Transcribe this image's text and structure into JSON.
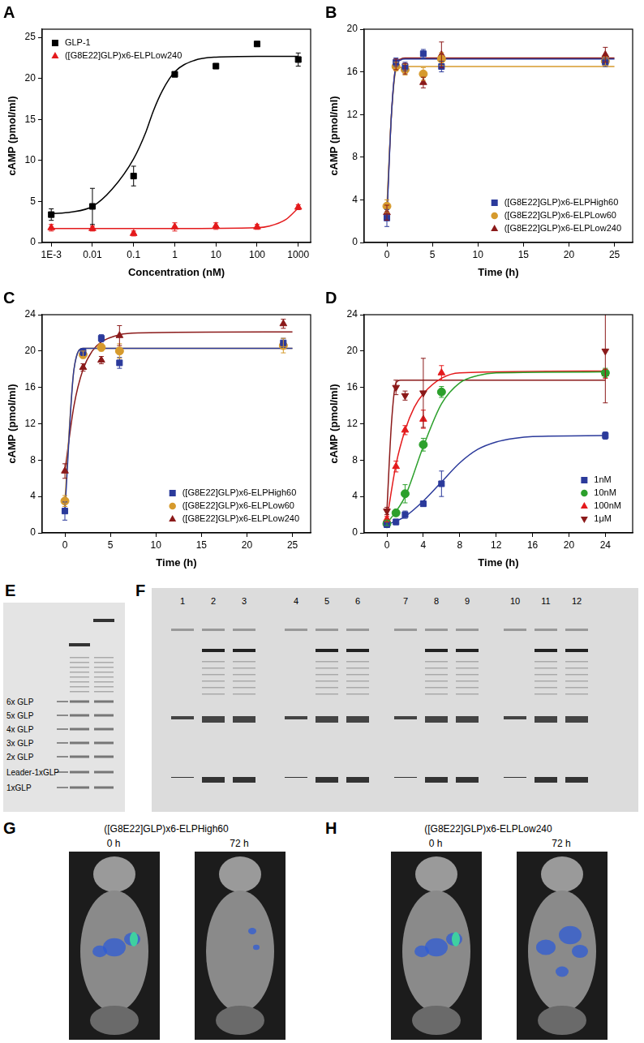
{
  "chart_data": [
    {
      "title": "A",
      "type": "scatter",
      "x_label": "Concentration (nM)",
      "y_label": "cAMP (pmol/ml)",
      "log": "x",
      "grid": false,
      "legend": "upper left",
      "xlim": [
        0.0006,
        2000
      ],
      "xticks": [
        {
          "value": 0.001,
          "label": "1E-3"
        },
        0.01,
        0.1,
        1,
        10,
        100,
        1000
      ],
      "ylim": [
        0,
        26
      ],
      "yticks": [
        0,
        5,
        10,
        15,
        20,
        25
      ],
      "series": [
        {
          "name": "GLP-1",
          "color": "#000000",
          "marker": "square",
          "x": [
            0.001,
            0.01,
            0.1,
            1,
            10,
            100,
            1000
          ],
          "values": [
            3.4,
            4.4,
            8.1,
            20.5,
            21.5,
            24.2,
            22.3
          ],
          "errors": [
            0.7,
            2.2,
            1.2,
            0.3,
            null,
            null,
            0.8
          ],
          "fit": {
            "x": [
              0.001,
              0.003,
              0.01,
              0.03,
              0.1,
              0.2,
              0.3,
              0.5,
              1,
              3,
              10,
              100,
              1000
            ],
            "values": [
              3.5,
              3.7,
              4.4,
              6.5,
              10.2,
              13.5,
              16,
              18.5,
              20.8,
              22.2,
              22.6,
              22.7,
              22.7
            ]
          }
        },
        {
          "name": "([G8E22]GLP)x6-ELPLow240",
          "color": "#e41a1c",
          "marker": "triangle",
          "x": [
            0.001,
            0.01,
            0.1,
            1,
            10,
            100,
            1000
          ],
          "values": [
            1.8,
            1.7,
            1.1,
            1.9,
            2.0,
            1.9,
            4.3
          ],
          "errors": [
            0.4,
            0.3,
            0.3,
            0.5,
            0.4,
            0.3,
            0.3
          ],
          "fit": {
            "x": [
              0.001,
              1,
              100,
              200,
              500,
              1000
            ],
            "values": [
              1.7,
              1.7,
              1.8,
              2.0,
              2.8,
              4.2
            ]
          }
        }
      ]
    },
    {
      "title": "B",
      "type": "scatter",
      "x_label": "Time (h)",
      "y_label": "cAMP (pmol/ml)",
      "grid": false,
      "legend": "lower right",
      "xlim": [
        -2.5,
        27
      ],
      "xticks": [
        0,
        5,
        10,
        15,
        20,
        25
      ],
      "ylim": [
        0,
        20
      ],
      "yticks": [
        0,
        4,
        8,
        12,
        16,
        20
      ],
      "series": [
        {
          "name": "([G8E22]GLP)x6-ELPHigh60",
          "color": "#2b3a9b",
          "marker": "square",
          "x": [
            0,
            1,
            2,
            4,
            6,
            24
          ],
          "values": [
            2.3,
            16.9,
            16.5,
            17.7,
            16.5,
            16.9
          ],
          "errors": [
            0.8,
            0.4,
            0.4,
            0.4,
            0.5,
            0.4
          ],
          "fit": {
            "x": [
              0,
              0.5,
              1,
              1.5,
              2,
              25
            ],
            "values": [
              2.3,
              12,
              16.5,
              17.1,
              17.2,
              17.2
            ]
          }
        },
        {
          "name": "([G8E22]GLP)x6-ELPLow60",
          "color": "#d69a2d",
          "marker": "circle",
          "x": [
            0,
            1,
            2,
            4,
            6,
            24
          ],
          "values": [
            3.4,
            16.5,
            16.2,
            15.8,
            17.2,
            17.0
          ],
          "errors": [
            0.6,
            0.4,
            0.5,
            0.6,
            0.6,
            0.4
          ],
          "fit": {
            "x": [
              0,
              0.5,
              1,
              1.5,
              2,
              25
            ],
            "values": [
              3.4,
              12,
              16.1,
              16.4,
              16.5,
              16.5
            ]
          }
        },
        {
          "name": "([G8E22]GLP)x6-ELPLow240",
          "color": "#8b1a1a",
          "marker": "triangle",
          "x": [
            0,
            1,
            2,
            4,
            6,
            24
          ],
          "values": [
            2.8,
            16.7,
            16.3,
            15.0,
            17.6,
            17.6
          ],
          "errors": [
            0.7,
            0.5,
            0.5,
            0.5,
            1.2,
            0.7
          ],
          "fit": {
            "x": [
              0,
              0.5,
              1,
              1.5,
              2,
              25
            ],
            "values": [
              2.8,
              12,
              16.6,
              17.2,
              17.3,
              17.3
            ]
          }
        }
      ]
    },
    {
      "title": "C",
      "type": "scatter",
      "x_label": "Time (h)",
      "y_label": "cAMP (pmol/ml)",
      "grid": false,
      "legend": "lower right",
      "xlim": [
        -2.5,
        27
      ],
      "xticks": [
        0,
        5,
        10,
        15,
        20,
        25
      ],
      "ylim": [
        0,
        24
      ],
      "yticks": [
        0,
        4,
        8,
        12,
        16,
        20,
        24
      ],
      "series": [
        {
          "name": "([G8E22]GLP)x6-ELPHigh60",
          "color": "#2b3a9b",
          "marker": "square",
          "x": [
            0,
            2,
            4,
            6,
            24
          ],
          "values": [
            2.4,
            19.9,
            21.4,
            18.7,
            20.9
          ],
          "errors": [
            1.0,
            0.4,
            0.4,
            0.6,
            0.5
          ],
          "fit": {
            "x": [
              0,
              1,
              2,
              25
            ],
            "values": [
              2.4,
              18,
              20.3,
              20.3
            ]
          }
        },
        {
          "name": "([G8E22]GLP)x6-ELPLow60",
          "color": "#d69a2d",
          "marker": "circle",
          "x": [
            0,
            2,
            4,
            6,
            24
          ],
          "values": [
            3.5,
            19.6,
            20.4,
            20.0,
            20.6
          ],
          "errors": [
            0.6,
            0.4,
            0.4,
            0.8,
            0.8
          ],
          "fit": {
            "x": [
              0,
              1,
              2,
              25
            ],
            "values": [
              3.5,
              18,
              20.3,
              20.3
            ]
          }
        },
        {
          "name": "([G8E22]GLP)x6-ELPLow240",
          "color": "#8b1a1a",
          "marker": "triangle",
          "x": [
            0,
            2,
            4,
            6,
            24
          ],
          "values": [
            6.8,
            18.2,
            19.0,
            21.7,
            23.0
          ],
          "errors": [
            0.8,
            0.4,
            0.4,
            1.1,
            0.5
          ],
          "fit": {
            "x": [
              0,
              1,
              2,
              3,
              4,
              6,
              8,
              25
            ],
            "values": [
              6.8,
              14,
              18,
              20,
              21,
              21.8,
              22,
              22.1
            ]
          }
        }
      ]
    },
    {
      "title": "D",
      "type": "scatter",
      "x_label": "Time (h)",
      "y_label": "cAMP (pmol/ml)",
      "grid": false,
      "legend": "lower right",
      "xlim": [
        -2.5,
        27
      ],
      "xticks": [
        0,
        4,
        8,
        12,
        16,
        20,
        24
      ],
      "ylim": [
        0,
        24
      ],
      "yticks": [
        0,
        4,
        8,
        12,
        16,
        20,
        24
      ],
      "series": [
        {
          "name": "1nM",
          "color": "#2b3a9b",
          "marker": "square",
          "x": [
            0,
            1,
            2,
            4,
            6,
            24
          ],
          "values": [
            0.9,
            1.2,
            2.0,
            3.2,
            5.4,
            10.7
          ],
          "errors": [
            0.2,
            0.3,
            0.4,
            0.3,
            1.4,
            0.4
          ],
          "fit": {
            "x": [
              0,
              2,
              4,
              6,
              8,
              10,
              12,
              14,
              16,
              24
            ],
            "values": [
              0.9,
              1.8,
              3.5,
              5.6,
              7.7,
              9.2,
              10.0,
              10.4,
              10.6,
              10.7
            ]
          }
        },
        {
          "name": "10nM",
          "color": "#2ca02c",
          "marker": "circle",
          "x": [
            0,
            1,
            2,
            4,
            6,
            24
          ],
          "values": [
            1.0,
            2.2,
            4.3,
            9.7,
            15.5,
            17.6
          ],
          "errors": [
            0.2,
            0.3,
            1.0,
            0.7,
            0.6,
            0.5
          ],
          "fit": {
            "x": [
              0,
              2,
              4,
              6,
              8,
              10,
              12,
              24
            ],
            "values": [
              1.0,
              4.0,
              9.5,
              14.2,
              16.5,
              17.3,
              17.6,
              17.7
            ]
          }
        },
        {
          "name": "100nM",
          "color": "#e41a1c",
          "marker": "triangle",
          "x": [
            0,
            1,
            2,
            4,
            6,
            24
          ],
          "values": [
            1.5,
            7.3,
            11.3,
            12.5,
            17.6,
            17.5
          ],
          "errors": [
            0.3,
            0.6,
            0.5,
            1.0,
            0.8,
            0.5
          ],
          "fit": {
            "x": [
              0,
              1,
              2,
              3,
              4,
              6,
              8,
              24
            ],
            "values": [
              1.5,
              7.5,
              11.3,
              13.8,
              15.3,
              17.0,
              17.6,
              17.8
            ]
          }
        },
        {
          "name": "1μM",
          "color": "#8b1a1a",
          "marker": "triangle_down",
          "x": [
            0,
            1,
            2,
            4,
            24
          ],
          "values": [
            2.4,
            16.0,
            15.1,
            15.4,
            20.0
          ],
          "errors": [
            0.4,
            0.8,
            0.5,
            3.8,
            5.7
          ],
          "fit": {
            "x": [
              0,
              0.5,
              1,
              1.5,
              24
            ],
            "values": [
              2.4,
              12,
              16.5,
              16.8,
              16.8
            ]
          }
        }
      ]
    }
  ],
  "gel_E": {
    "title": "E",
    "band_labels": [
      "6x GLP",
      "5x GLP",
      "4x GLP",
      "3x GLP",
      "2x GLP",
      "Leader-1xGLP",
      "1xGLP"
    ]
  },
  "gel_F": {
    "title": "F",
    "lanes": [
      "1",
      "2",
      "3",
      "4",
      "5",
      "6",
      "7",
      "8",
      "9",
      "10",
      "11",
      "12"
    ]
  },
  "images": [
    {
      "title": "G",
      "caption": "([G8E22]GLP)x6-ELPHigh60",
      "times": [
        "0 h",
        "72 h"
      ]
    },
    {
      "title": "H",
      "caption": "([G8E22]GLP)x6-ELPLow240",
      "times": [
        "0 h",
        "72 h"
      ]
    }
  ]
}
